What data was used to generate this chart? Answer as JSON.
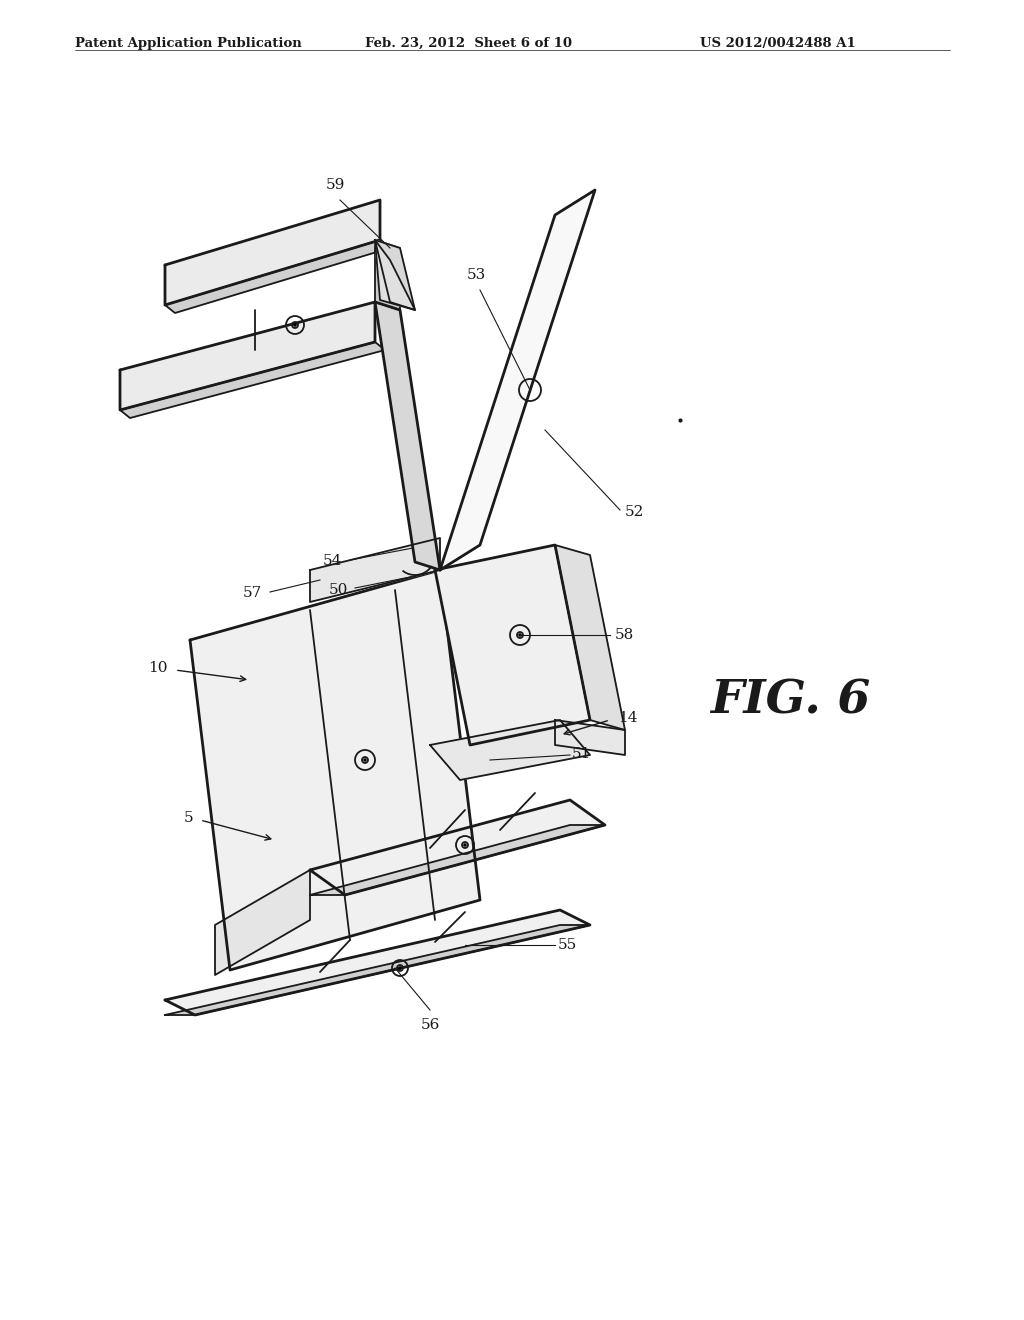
{
  "bg_color": "#ffffff",
  "line_color": "#1a1a1a",
  "header_text": "Patent Application Publication",
  "header_date": "Feb. 23, 2012  Sheet 6 of 10",
  "header_patent": "US 2012/0042488 A1",
  "fig_label": "FIG. 6"
}
